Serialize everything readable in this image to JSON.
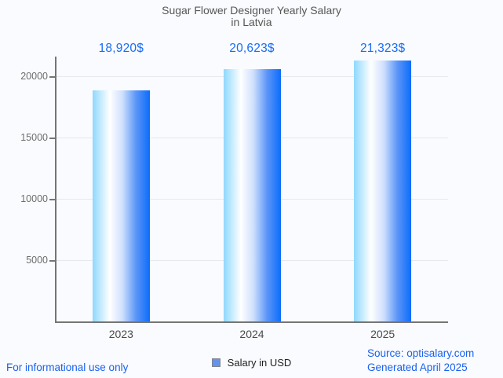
{
  "page": {
    "background": "#f9fbfe"
  },
  "header": {
    "title_line1": "Sugar Flower Designer Yearly Salary",
    "title_line2": "in Latvia"
  },
  "chart_data": {
    "type": "bar",
    "title": "Sugar Flower Designer Yearly Salary in Latvia",
    "categories": [
      "2023",
      "2024",
      "2025"
    ],
    "series": [
      {
        "name": "Salary in USD",
        "values": [
          18920,
          20623,
          21323
        ]
      }
    ],
    "value_labels": [
      "18,920$",
      "20,623$",
      "21,323$"
    ],
    "yticks": [
      5000,
      10000,
      15000,
      20000
    ],
    "ylim": [
      0,
      21667
    ],
    "grid": true,
    "legend_position": "bottom",
    "xlabel": "",
    "ylabel": ""
  },
  "legend": {
    "label": "Salary in USD"
  },
  "footer": {
    "left_note": "For informational use only",
    "source_line": "Source: optisalary.com",
    "generated_line": "Generated April 2025"
  },
  "colors": {
    "background": "#f9fbfe",
    "title_gray": "#575757",
    "ytick_gray": "#6d6d6d",
    "xlabel_gray": "#4a4a4a",
    "axis_gray": "#757575",
    "gridline_gray": "#e5e8ec",
    "annotation_blue": "#1a6cf3",
    "link_blue": "#1a61f0",
    "legend_swatch_fill": "#6393ec",
    "legend_swatch_border": "#80868f",
    "bar_gradient": [
      "#8fd8fe",
      "#ffffff",
      "#cfe0fd",
      "#5b95f8",
      "#0c6cfc"
    ],
    "bar_gradient_stops": [
      0,
      30,
      52,
      76,
      100
    ]
  }
}
